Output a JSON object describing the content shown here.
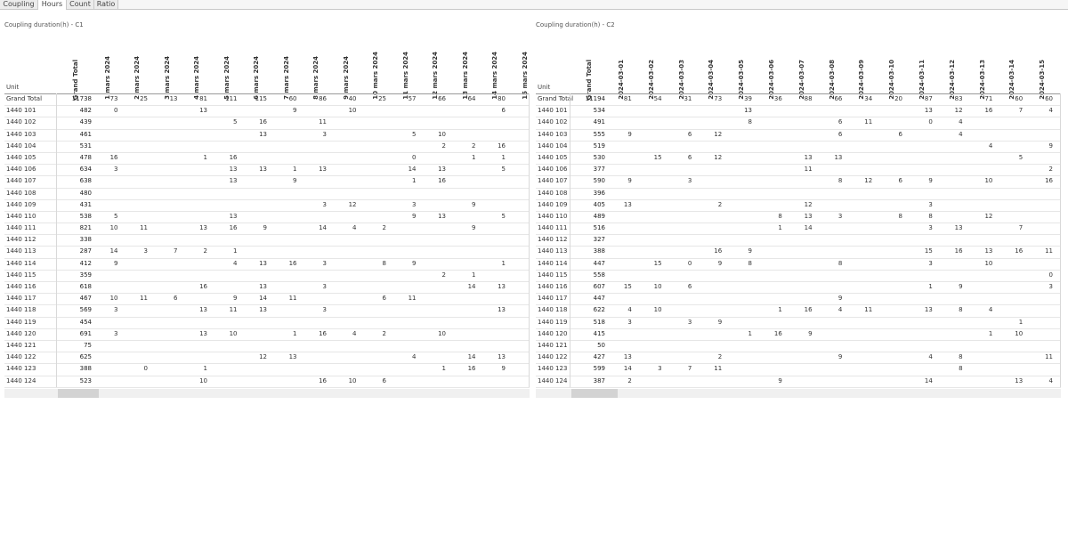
{
  "tabs": [
    {
      "label": "Coupling",
      "active": false
    },
    {
      "label": "Hours",
      "active": true
    },
    {
      "label": "Count",
      "active": false
    },
    {
      "label": "Ratio",
      "active": false
    }
  ],
  "units": [
    "1440 101",
    "1440 102",
    "1440 103",
    "1440 104",
    "1440 105",
    "1440 106",
    "1440 107",
    "1440 108",
    "1440 109",
    "1440 110",
    "1440 111",
    "1440 112",
    "1440 113",
    "1440 114",
    "1440 115",
    "1440 116",
    "1440 117",
    "1440 118",
    "1440 119",
    "1440 120",
    "1440 121",
    "1440 122",
    "1440 123",
    "1440 124"
  ],
  "left": {
    "title": "Coupling duration(h) - C1",
    "unit_header": "Unit",
    "total_header": "Grand Total",
    "grand_total_label": "Grand Total",
    "columns": [
      "1 mars 2024",
      "2 mars 2024",
      "3 mars 2024",
      "4 mars 2024",
      "5 mars 2024",
      "6 mars 2024",
      "7 mars 2024",
      "8 mars 2024",
      "9 mars 2024",
      "10 mars 2024",
      "11 mars 2024",
      "12 mars 2024",
      "13 mars 2024",
      "14 mars 2024",
      "15 mars 2024"
    ],
    "grand_total": {
      "total": "11738",
      "values": [
        "73",
        "25",
        "13",
        "81",
        "111",
        "115",
        "60",
        "86",
        "40",
        "25",
        "57",
        "66",
        "64",
        "80",
        ""
      ]
    },
    "rows": [
      {
        "total": "482",
        "values": [
          "0",
          "",
          "",
          "13",
          "",
          "",
          "9",
          "",
          "10",
          "",
          "",
          "",
          "",
          "6",
          ""
        ]
      },
      {
        "total": "439",
        "values": [
          "",
          "",
          "",
          "",
          "5",
          "16",
          "",
          "11",
          "",
          "",
          "",
          "",
          "",
          "",
          ""
        ]
      },
      {
        "total": "461",
        "values": [
          "",
          "",
          "",
          "",
          "",
          "13",
          "",
          "3",
          "",
          "",
          "5",
          "10",
          "",
          "",
          ""
        ]
      },
      {
        "total": "531",
        "values": [
          "",
          "",
          "",
          "",
          "",
          "",
          "",
          "",
          "",
          "",
          "",
          "2",
          "2",
          "16",
          ""
        ]
      },
      {
        "total": "478",
        "values": [
          "16",
          "",
          "",
          "1",
          "16",
          "",
          "",
          "",
          "",
          "",
          "0",
          "",
          "1",
          "1",
          ""
        ]
      },
      {
        "total": "634",
        "values": [
          "3",
          "",
          "",
          "",
          "13",
          "13",
          "1",
          "13",
          "",
          "",
          "14",
          "13",
          "",
          "5",
          ""
        ]
      },
      {
        "total": "638",
        "values": [
          "",
          "",
          "",
          "",
          "13",
          "",
          "9",
          "",
          "",
          "",
          "1",
          "16",
          "",
          "",
          ""
        ]
      },
      {
        "total": "480",
        "values": [
          "",
          "",
          "",
          "",
          "",
          "",
          "",
          "",
          "",
          "",
          "",
          "",
          "",
          "",
          ""
        ]
      },
      {
        "total": "431",
        "values": [
          "",
          "",
          "",
          "",
          "",
          "",
          "",
          "3",
          "12",
          "",
          "3",
          "",
          "9",
          "",
          ""
        ]
      },
      {
        "total": "538",
        "values": [
          "5",
          "",
          "",
          "",
          "13",
          "",
          "",
          "",
          "",
          "",
          "9",
          "13",
          "",
          "5",
          ""
        ]
      },
      {
        "total": "821",
        "values": [
          "10",
          "11",
          "",
          "13",
          "16",
          "9",
          "",
          "14",
          "4",
          "2",
          "",
          "",
          "9",
          "",
          ""
        ]
      },
      {
        "total": "338",
        "values": [
          "",
          "",
          "",
          "",
          "",
          "",
          "",
          "",
          "",
          "",
          "",
          "",
          "",
          "",
          ""
        ]
      },
      {
        "total": "287",
        "values": [
          "14",
          "3",
          "7",
          "2",
          "1",
          "",
          "",
          "",
          "",
          "",
          "",
          "",
          "",
          "",
          ""
        ]
      },
      {
        "total": "412",
        "values": [
          "9",
          "",
          "",
          "",
          "4",
          "13",
          "16",
          "3",
          "",
          "8",
          "9",
          "",
          "",
          "1",
          ""
        ]
      },
      {
        "total": "359",
        "values": [
          "",
          "",
          "",
          "",
          "",
          "",
          "",
          "",
          "",
          "",
          "",
          "2",
          "1",
          "",
          ""
        ]
      },
      {
        "total": "618",
        "values": [
          "",
          "",
          "",
          "16",
          "",
          "13",
          "",
          "3",
          "",
          "",
          "",
          "",
          "14",
          "13",
          ""
        ]
      },
      {
        "total": "467",
        "values": [
          "10",
          "11",
          "6",
          "",
          "9",
          "14",
          "11",
          "",
          "",
          "6",
          "11",
          "",
          "",
          "",
          ""
        ]
      },
      {
        "total": "569",
        "values": [
          "3",
          "",
          "",
          "13",
          "11",
          "13",
          "",
          "3",
          "",
          "",
          "",
          "",
          "",
          "13",
          ""
        ]
      },
      {
        "total": "454",
        "values": [
          "",
          "",
          "",
          "",
          "",
          "",
          "",
          "",
          "",
          "",
          "",
          "",
          "",
          "",
          ""
        ]
      },
      {
        "total": "691",
        "values": [
          "3",
          "",
          "",
          "13",
          "10",
          "",
          "1",
          "16",
          "4",
          "2",
          "",
          "10",
          "",
          "",
          ""
        ]
      },
      {
        "total": "75",
        "values": [
          "",
          "",
          "",
          "",
          "",
          "",
          "",
          "",
          "",
          "",
          "",
          "",
          "",
          "",
          ""
        ]
      },
      {
        "total": "625",
        "values": [
          "",
          "",
          "",
          "",
          "",
          "12",
          "13",
          "",
          "",
          "",
          "4",
          "",
          "14",
          "13",
          ""
        ]
      },
      {
        "total": "388",
        "values": [
          "",
          "0",
          "",
          "1",
          "",
          "",
          "",
          "",
          "",
          "",
          "",
          "1",
          "16",
          "9",
          ""
        ]
      },
      {
        "total": "523",
        "values": [
          "",
          "",
          "",
          "10",
          "",
          "",
          "",
          "16",
          "10",
          "6",
          "",
          "",
          "",
          "",
          ""
        ]
      }
    ]
  },
  "right": {
    "title": "Coupling duration(h) - C2",
    "unit_header": "Unit",
    "total_header": "Grand Total",
    "grand_total_label": "Grand Total",
    "columns": [
      "2024-03-01",
      "2024-03-02",
      "2024-03-03",
      "2024-03-04",
      "2024-03-05",
      "2024-03-06",
      "2024-03-07",
      "2024-03-08",
      "2024-03-09",
      "2024-03-10",
      "2024-03-11",
      "2024-03-12",
      "2024-03-13",
      "2024-03-14",
      "2024-03-15"
    ],
    "grand_total": {
      "total": "11194",
      "values": [
        "81",
        "54",
        "31",
        "73",
        "39",
        "36",
        "88",
        "66",
        "34",
        "20",
        "87",
        "83",
        "71",
        "60",
        "60"
      ]
    },
    "rows": [
      {
        "total": "534",
        "values": [
          "",
          "",
          "",
          "",
          "13",
          "",
          "",
          "",
          "",
          "",
          "13",
          "12",
          "16",
          "7",
          "4"
        ]
      },
      {
        "total": "491",
        "values": [
          "",
          "",
          "",
          "",
          "8",
          "",
          "",
          "6",
          "11",
          "",
          "0",
          "4",
          "",
          "",
          ""
        ]
      },
      {
        "total": "555",
        "values": [
          "9",
          "",
          "6",
          "12",
          "",
          "",
          "",
          "6",
          "",
          "6",
          "",
          "4",
          "",
          "",
          ""
        ]
      },
      {
        "total": "519",
        "values": [
          "",
          "",
          "",
          "",
          "",
          "",
          "",
          "",
          "",
          "",
          "",
          "",
          "4",
          "",
          "9"
        ]
      },
      {
        "total": "530",
        "values": [
          "",
          "15",
          "6",
          "12",
          "",
          "",
          "13",
          "13",
          "",
          "",
          "",
          "",
          "",
          "5",
          ""
        ]
      },
      {
        "total": "377",
        "values": [
          "",
          "",
          "",
          "",
          "",
          "",
          "11",
          "",
          "",
          "",
          "",
          "",
          "",
          "",
          "2"
        ]
      },
      {
        "total": "590",
        "values": [
          "9",
          "",
          "3",
          "",
          "",
          "",
          "",
          "8",
          "12",
          "6",
          "9",
          "",
          "10",
          "",
          "16"
        ]
      },
      {
        "total": "396",
        "values": [
          "",
          "",
          "",
          "",
          "",
          "",
          "",
          "",
          "",
          "",
          "",
          "",
          "",
          "",
          ""
        ]
      },
      {
        "total": "405",
        "values": [
          "13",
          "",
          "",
          "2",
          "",
          "",
          "12",
          "",
          "",
          "",
          "3",
          "",
          "",
          "",
          ""
        ]
      },
      {
        "total": "489",
        "values": [
          "",
          "",
          "",
          "",
          "",
          "8",
          "13",
          "3",
          "",
          "8",
          "8",
          "",
          "12",
          "",
          ""
        ]
      },
      {
        "total": "516",
        "values": [
          "",
          "",
          "",
          "",
          "",
          "1",
          "14",
          "",
          "",
          "",
          "3",
          "13",
          "",
          "7",
          ""
        ]
      },
      {
        "total": "327",
        "values": [
          "",
          "",
          "",
          "",
          "",
          "",
          "",
          "",
          "",
          "",
          "",
          "",
          "",
          "",
          ""
        ]
      },
      {
        "total": "388",
        "values": [
          "",
          "",
          "",
          "16",
          "9",
          "",
          "",
          "",
          "",
          "",
          "15",
          "16",
          "13",
          "16",
          "11"
        ]
      },
      {
        "total": "447",
        "values": [
          "",
          "15",
          "0",
          "9",
          "8",
          "",
          "",
          "8",
          "",
          "",
          "3",
          "",
          "10",
          "",
          ""
        ]
      },
      {
        "total": "558",
        "values": [
          "",
          "",
          "",
          "",
          "",
          "",
          "",
          "",
          "",
          "",
          "",
          "",
          "",
          "",
          "0"
        ]
      },
      {
        "total": "607",
        "values": [
          "15",
          "10",
          "6",
          "",
          "",
          "",
          "",
          "",
          "",
          "",
          "1",
          "9",
          "",
          "",
          "3"
        ]
      },
      {
        "total": "447",
        "values": [
          "",
          "",
          "",
          "",
          "",
          "",
          "",
          "9",
          "",
          "",
          "",
          "",
          "",
          "",
          ""
        ]
      },
      {
        "total": "622",
        "values": [
          "4",
          "10",
          "",
          "",
          "",
          "1",
          "16",
          "4",
          "11",
          "",
          "13",
          "8",
          "4",
          "",
          ""
        ]
      },
      {
        "total": "518",
        "values": [
          "3",
          "",
          "3",
          "9",
          "",
          "",
          "",
          "",
          "",
          "",
          "",
          "",
          "",
          "1",
          ""
        ]
      },
      {
        "total": "415",
        "values": [
          "",
          "",
          "",
          "",
          "1",
          "16",
          "9",
          "",
          "",
          "",
          "",
          "",
          "1",
          "10",
          ""
        ]
      },
      {
        "total": "50",
        "values": [
          "",
          "",
          "",
          "",
          "",
          "",
          "",
          "",
          "",
          "",
          "",
          "",
          "",
          "",
          ""
        ]
      },
      {
        "total": "427",
        "values": [
          "13",
          "",
          "",
          "2",
          "",
          "",
          "",
          "9",
          "",
          "",
          "4",
          "8",
          "",
          "",
          "11"
        ]
      },
      {
        "total": "599",
        "values": [
          "14",
          "3",
          "7",
          "11",
          "",
          "",
          "",
          "",
          "",
          "",
          "",
          "8",
          "",
          "",
          ""
        ]
      },
      {
        "total": "387",
        "values": [
          "2",
          "",
          "",
          "",
          "",
          "9",
          "",
          "",
          "",
          "",
          "14",
          "",
          "",
          "13",
          "4"
        ]
      }
    ]
  }
}
